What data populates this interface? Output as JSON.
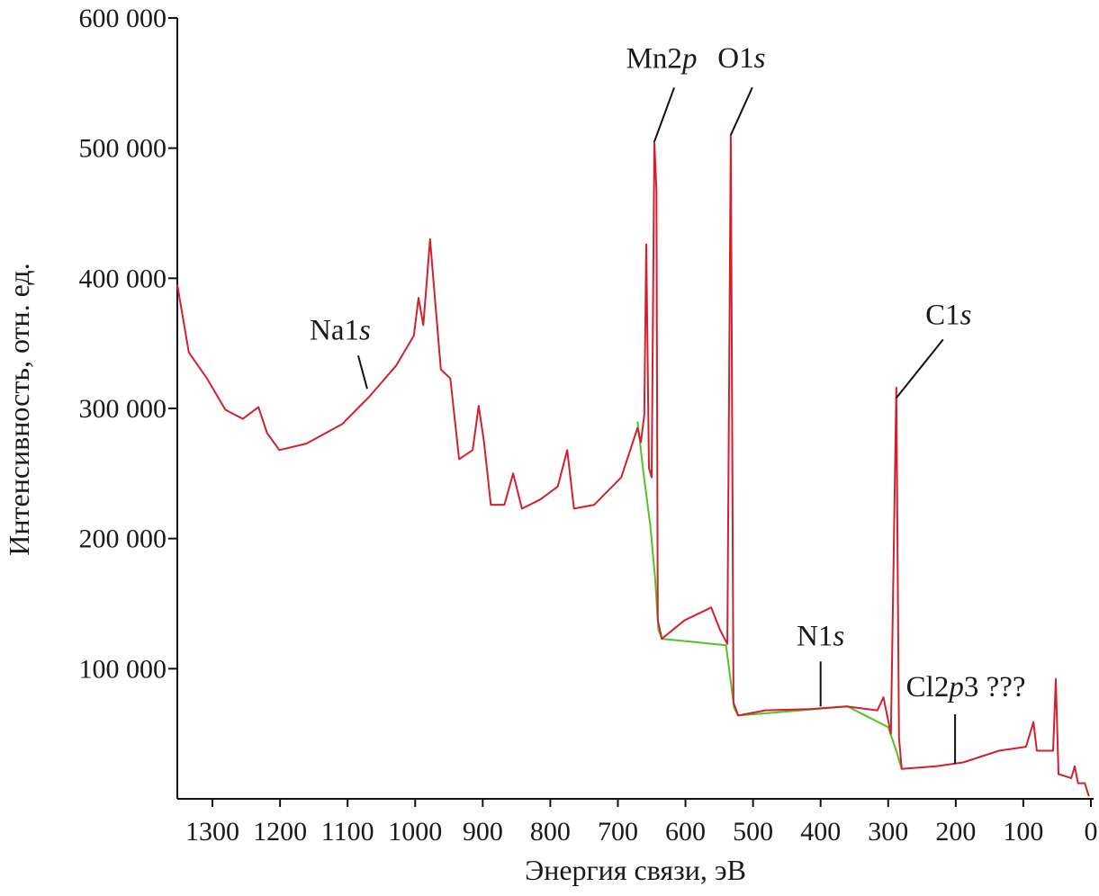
{
  "chart_data": {
    "type": "line",
    "xlabel": "Энергия связи, эВ",
    "ylabel": "Интенсивность, отн. ед.",
    "xlim": [
      1352,
      -4
    ],
    "ylim": [
      0,
      600000
    ],
    "xticks": [
      1300,
      1200,
      1100,
      1000,
      900,
      800,
      700,
      600,
      500,
      400,
      300,
      200,
      100,
      0
    ],
    "yticks": [
      {
        "value": 100000,
        "label": "100 000"
      },
      {
        "value": 200000,
        "label": "200 000"
      },
      {
        "value": 300000,
        "label": "300 000"
      },
      {
        "value": 400000,
        "label": "400 000"
      },
      {
        "value": 500000,
        "label": "500 000"
      },
      {
        "value": 600000,
        "label": "600 000"
      }
    ],
    "series": [
      {
        "color": "#55c02a",
        "x": [
          671,
          662,
          652,
          645,
          640,
          635,
          540,
          533,
          528,
          522,
          360,
          300,
          288,
          280
        ],
        "values": [
          290000,
          250000,
          210000,
          170000,
          130000,
          123000,
          118000,
          90000,
          70000,
          64000,
          71000,
          55000,
          37000,
          23000
        ]
      },
      {
        "color": "#d3202e",
        "x": [
          1352,
          1335,
          1308,
          1281,
          1255,
          1232,
          1219,
          1201,
          1161,
          1108,
          1068,
          1028,
          1002,
          995,
          988,
          978,
          972,
          962,
          948,
          935,
          915,
          906,
          898,
          888,
          868,
          855,
          842,
          815,
          789,
          775,
          765,
          735,
          695,
          671,
          666,
          661,
          658,
          654,
          650,
          646,
          643,
          641,
          635,
          602,
          562,
          549,
          538,
          533,
          529,
          522,
          482,
          416,
          362,
          316,
          307,
          296,
          288,
          284,
          280,
          229,
          189,
          136,
          96,
          85,
          80,
          56,
          52,
          48,
          29,
          24,
          19,
          9,
          3
        ],
        "values": [
          395000,
          343000,
          323000,
          299000,
          292000,
          301000,
          281000,
          268000,
          273000,
          288000,
          309000,
          333000,
          356000,
          385000,
          364000,
          430000,
          392000,
          330000,
          323000,
          261000,
          268000,
          302000,
          274000,
          226000,
          226000,
          250000,
          223000,
          230000,
          240000,
          268000,
          223000,
          226000,
          247000,
          285000,
          274000,
          295000,
          426000,
          254000,
          247000,
          505000,
          468000,
          137000,
          123000,
          137000,
          147000,
          130000,
          119000,
          510000,
          74000,
          64000,
          68000,
          69000,
          71000,
          68000,
          78000,
          50000,
          316000,
          47000,
          23000,
          25000,
          28000,
          37000,
          40000,
          59000,
          37000,
          37000,
          92000,
          19000,
          16000,
          25000,
          12000,
          12000,
          2000
        ]
      }
    ],
    "annotations": [
      {
        "parts": [
          "Mn2",
          "p"
        ],
        "x": 646,
        "y": 505000
      },
      {
        "parts": [
          "O1",
          "s"
        ],
        "x": 533,
        "y": 510000
      },
      {
        "parts": [
          "C1",
          "s"
        ],
        "x": 288,
        "y": 308000
      },
      {
        "parts": [
          "Na1",
          "s"
        ],
        "x": 1071,
        "y": 315000
      },
      {
        "parts": [
          "N1",
          "s"
        ],
        "x": 400,
        "y": 71000
      },
      {
        "parts": [
          "Cl2",
          "p",
          "3 ???"
        ],
        "x": 201,
        "y": 27000
      }
    ]
  }
}
